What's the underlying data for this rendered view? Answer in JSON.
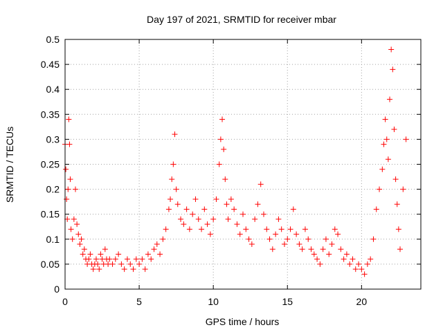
{
  "chart_data": {
    "type": "scatter",
    "title": "Day 197 of 2021, SRMTID for receiver mbar",
    "xlabel": "GPS time / hours",
    "ylabel": "SRMTID / TECUs",
    "xlim": [
      0,
      24
    ],
    "ylim": [
      0,
      0.5
    ],
    "x_ticks": [
      0,
      5,
      10,
      15,
      20
    ],
    "x_tick_labels": [
      "0",
      "5",
      "10",
      "15",
      "20"
    ],
    "y_ticks": [
      0,
      0.05,
      0.1,
      0.15,
      0.2,
      0.25,
      0.3,
      0.35,
      0.4,
      0.45,
      0.5
    ],
    "y_tick_labels": [
      "0",
      "0.05",
      "0.1",
      "0.15",
      "0.2",
      "0.25",
      "0.3",
      "0.35",
      "0.4",
      "0.45",
      "0.5"
    ],
    "grid": true,
    "marker": "+",
    "color": "#ff0000",
    "series": [
      {
        "name": "mbar",
        "x": [
          0.0,
          0.05,
          0.1,
          0.15,
          0.2,
          0.25,
          0.3,
          0.35,
          0.4,
          0.5,
          0.6,
          0.7,
          0.8,
          0.9,
          1.0,
          1.1,
          1.2,
          1.3,
          1.4,
          1.5,
          1.6,
          1.7,
          1.8,
          1.9,
          2.0,
          2.1,
          2.2,
          2.3,
          2.4,
          2.5,
          2.6,
          2.7,
          2.8,
          2.9,
          3.0,
          3.2,
          3.4,
          3.6,
          3.8,
          4.0,
          4.2,
          4.4,
          4.6,
          4.8,
          5.0,
          5.2,
          5.4,
          5.6,
          5.8,
          6.0,
          6.2,
          6.4,
          6.6,
          6.8,
          7.0,
          7.1,
          7.2,
          7.3,
          7.4,
          7.5,
          7.6,
          7.8,
          8.0,
          8.2,
          8.4,
          8.6,
          8.8,
          9.0,
          9.2,
          9.4,
          9.6,
          9.8,
          10.0,
          10.2,
          10.4,
          10.5,
          10.6,
          10.7,
          10.8,
          10.9,
          11.0,
          11.2,
          11.4,
          11.6,
          11.8,
          12.0,
          12.2,
          12.4,
          12.6,
          12.8,
          13.0,
          13.2,
          13.4,
          13.6,
          13.8,
          14.0,
          14.2,
          14.4,
          14.6,
          14.8,
          15.0,
          15.2,
          15.4,
          15.6,
          15.8,
          16.0,
          16.2,
          16.4,
          16.6,
          16.8,
          17.0,
          17.2,
          17.4,
          17.6,
          17.8,
          18.0,
          18.2,
          18.4,
          18.6,
          18.8,
          19.0,
          19.2,
          19.4,
          19.6,
          19.8,
          20.0,
          20.2,
          20.4,
          20.6,
          20.8,
          21.0,
          21.2,
          21.4,
          21.5,
          21.6,
          21.7,
          21.8,
          21.9,
          22.0,
          22.1,
          22.2,
          22.3,
          22.4,
          22.5,
          22.6,
          22.8,
          23.0
        ],
        "y": [
          0.29,
          0.24,
          0.18,
          0.14,
          0.2,
          0.34,
          0.29,
          0.22,
          0.12,
          0.1,
          0.14,
          0.2,
          0.13,
          0.11,
          0.09,
          0.1,
          0.07,
          0.08,
          0.06,
          0.05,
          0.06,
          0.07,
          0.05,
          0.04,
          0.05,
          0.06,
          0.05,
          0.04,
          0.07,
          0.06,
          0.05,
          0.08,
          0.06,
          0.05,
          0.06,
          0.05,
          0.06,
          0.07,
          0.05,
          0.04,
          0.06,
          0.05,
          0.04,
          0.06,
          0.05,
          0.06,
          0.04,
          0.07,
          0.06,
          0.08,
          0.09,
          0.07,
          0.1,
          0.12,
          0.16,
          0.18,
          0.22,
          0.25,
          0.31,
          0.2,
          0.17,
          0.14,
          0.13,
          0.16,
          0.12,
          0.15,
          0.18,
          0.14,
          0.12,
          0.16,
          0.13,
          0.11,
          0.14,
          0.18,
          0.25,
          0.3,
          0.34,
          0.28,
          0.22,
          0.17,
          0.14,
          0.18,
          0.16,
          0.13,
          0.11,
          0.15,
          0.12,
          0.1,
          0.09,
          0.14,
          0.17,
          0.21,
          0.15,
          0.12,
          0.1,
          0.08,
          0.11,
          0.14,
          0.12,
          0.09,
          0.1,
          0.12,
          0.16,
          0.11,
          0.09,
          0.08,
          0.12,
          0.1,
          0.08,
          0.07,
          0.06,
          0.05,
          0.08,
          0.1,
          0.07,
          0.09,
          0.12,
          0.11,
          0.08,
          0.06,
          0.07,
          0.05,
          0.06,
          0.04,
          0.05,
          0.04,
          0.03,
          0.05,
          0.06,
          0.1,
          0.16,
          0.2,
          0.24,
          0.29,
          0.34,
          0.3,
          0.26,
          0.38,
          0.48,
          0.44,
          0.32,
          0.22,
          0.17,
          0.12,
          0.08,
          0.2,
          0.3
        ]
      }
    ]
  }
}
